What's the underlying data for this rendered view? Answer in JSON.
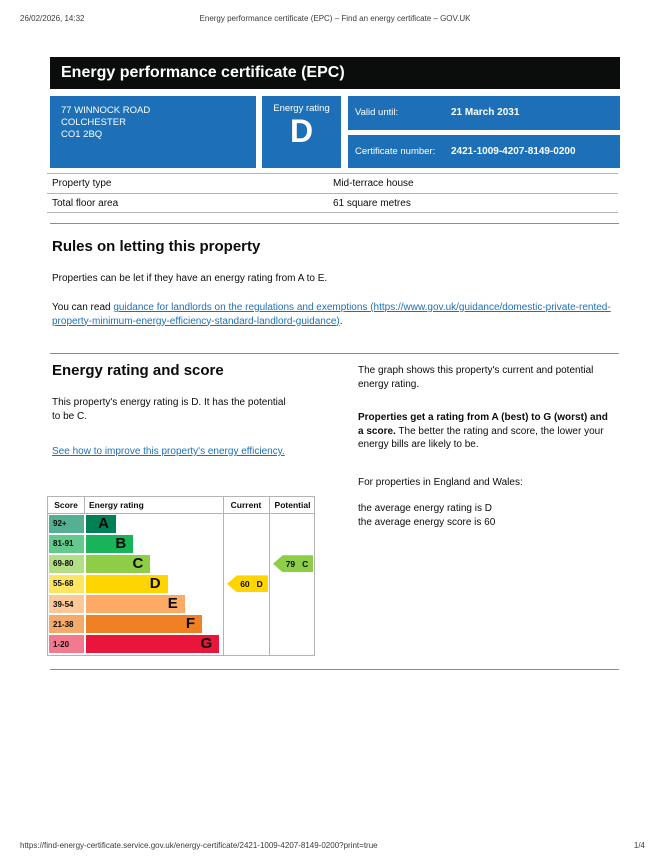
{
  "print_header": {
    "datetime": "26/02/2026, 14:32",
    "title": "Energy performance certificate (EPC) – Find an energy certificate – GOV.UK"
  },
  "banner": {
    "title": "Energy performance certificate (EPC)"
  },
  "summary": {
    "address_line1": "77 WINNOCK ROAD",
    "address_line2": "COLCHESTER",
    "address_line3": "CO1 2BQ",
    "rating_label": "Energy rating",
    "rating_value": "D",
    "valid_until_label": "Valid until:",
    "valid_until_value": "21 March 2031",
    "certificate_label": "Certificate number:",
    "certificate_value": "2421-1009-4207-8149-0200"
  },
  "property": {
    "rows": [
      {
        "label": "Property type",
        "value": "Mid-terrace house"
      },
      {
        "label": "Total floor area",
        "value": "61 square metres"
      }
    ]
  },
  "rules": {
    "heading": "Rules on letting this property",
    "para1": "Properties can be let if they have an energy rating from A to E.",
    "para2_prefix": "You can read ",
    "para2_link": "guidance for landlords on the regulations and exemptions (https://www.gov.uk/guidance/domestic-private-rented-property-minimum-energy-efficiency-standard-landlord-guidance)",
    "para2_suffix": "."
  },
  "rating": {
    "heading": "Energy rating and score",
    "para1": "This property's energy rating is D. It has the potential to be C.",
    "improve_link": "See how to improve this property's energy efficiency.",
    "graph_para": "The graph shows this property's current and potential energy rating.",
    "bold_para": "Properties get a rating from A (best) to G (worst) and a score.",
    "bold_para_rest": "The better the rating and score, the lower your energy bills are likely to be.",
    "england_para": "For properties in England and Wales:",
    "avg_line1": "the average energy rating is D",
    "avg_line2": "the average energy score is 60"
  },
  "chart_data": {
    "type": "bar",
    "columns": {
      "score": "Score",
      "rating": "Energy rating",
      "current": "Current",
      "potential": "Potential"
    },
    "bands": [
      {
        "range": "92+",
        "letter": "A",
        "color": "#008054",
        "score_cell_color": "#55b093"
      },
      {
        "range": "81-91",
        "letter": "B",
        "color": "#19b459",
        "score_cell_color": "#63c98d"
      },
      {
        "range": "69-80",
        "letter": "C",
        "color": "#8dce46",
        "score_cell_color": "#b4de85"
      },
      {
        "range": "55-68",
        "letter": "D",
        "color": "#ffd500",
        "score_cell_color": "#ffe662"
      },
      {
        "range": "39-54",
        "letter": "E",
        "color": "#fcaa65",
        "score_cell_color": "#fdc897"
      },
      {
        "range": "21-38",
        "letter": "F",
        "color": "#ef8023",
        "score_cell_color": "#f4aa6a"
      },
      {
        "range": "1-20",
        "letter": "G",
        "color": "#e9153b",
        "score_cell_color": "#f2798e"
      }
    ],
    "current": {
      "score": "60",
      "band": "D",
      "color": "#ffd500"
    },
    "potential": {
      "score": "79",
      "band": "C",
      "color": "#8dce46"
    }
  },
  "print_footer": {
    "url": "https://find-energy-certificate.service.gov.uk/energy-certificate/2421-1009-4207-8149-0200?print=true",
    "page": "1/4"
  },
  "colors": {
    "govuk_blue": "#1d70b8",
    "banner_black": "#0b0c0c",
    "rule_blue": "#5e97c9",
    "border_grey": "#b1b4b6"
  }
}
